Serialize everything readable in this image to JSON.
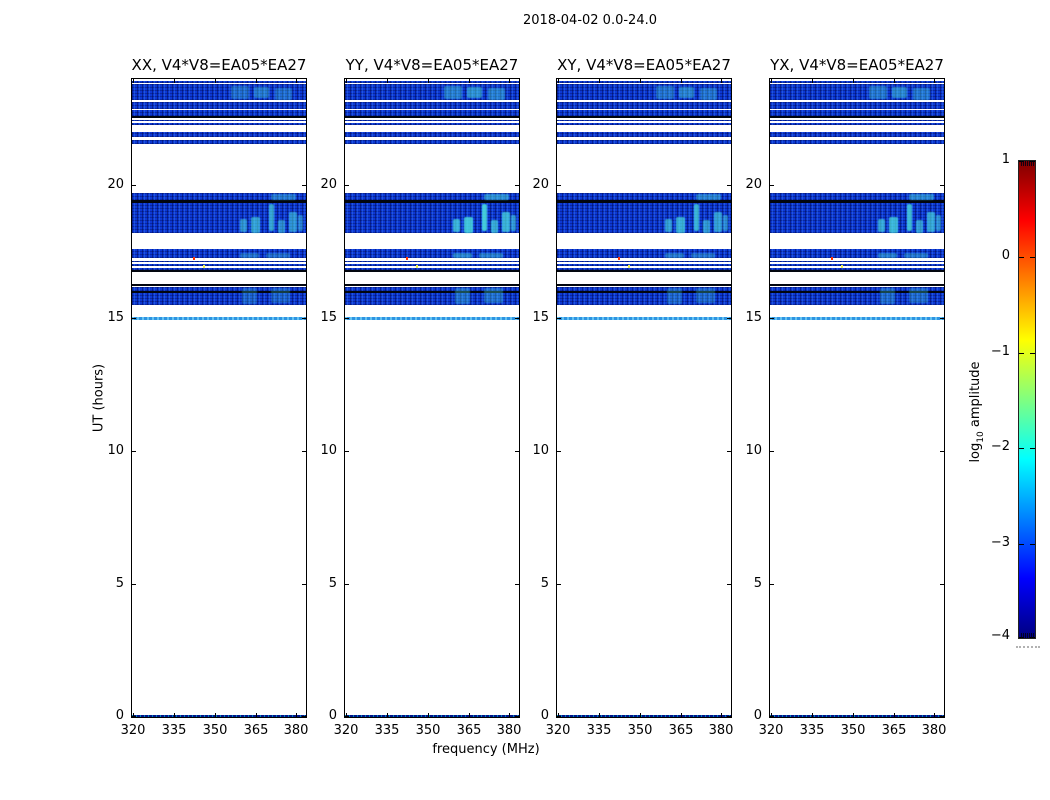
{
  "figure": {
    "title": "2018-04-02 0.0-24.0",
    "background": "#ffffff"
  },
  "chart_data": {
    "type": "heatmap",
    "subtype": "dynamic-spectrum waterfall, 4 polarization panels sharing identical axes",
    "title": "2018-04-02 0.0-24.0",
    "xlabel": "frequency (MHz)",
    "ylabel": "UT (hours)",
    "x_range_mhz": [
      319.5,
      383.5
    ],
    "y_range_hours": [
      0,
      24
    ],
    "grid": false,
    "panels": [
      {
        "id": "XX",
        "title": "XX, V4*V8=EA05*EA27",
        "streak_gain": 0.75
      },
      {
        "id": "YY",
        "title": "YY, V4*V8=EA05*EA27",
        "streak_gain": 1.0
      },
      {
        "id": "XY",
        "title": "XY, V4*V8=EA05*EA27",
        "streak_gain": 0.85
      },
      {
        "id": "YX",
        "title": "YX, V4*V8=EA05*EA27",
        "streak_gain": 0.9
      }
    ],
    "x_ticks": {
      "labels": [
        "320",
        "335",
        "350",
        "365",
        "380"
      ],
      "fracs": [
        0.008,
        0.242,
        0.477,
        0.711,
        0.945
      ]
    },
    "y_ticks": {
      "labels": [
        "0",
        "5",
        "10",
        "15",
        "20"
      ],
      "hours": [
        0,
        5,
        10,
        15,
        20
      ]
    },
    "bands": [
      {
        "t": 23.93,
        "b": 23.85,
        "s": "blue"
      },
      {
        "t": 23.8,
        "b": 23.21,
        "s": "blue"
      },
      {
        "t": 23.12,
        "b": 22.88,
        "s": "blue"
      },
      {
        "t": 22.83,
        "b": 22.6,
        "s": "blue"
      },
      {
        "t": 22.6,
        "b": 22.53,
        "s": "black"
      },
      {
        "t": 22.47,
        "b": 22.41,
        "s": "blue"
      },
      {
        "t": 22.34,
        "b": 22.28,
        "s": "blue"
      },
      {
        "t": 22.02,
        "b": 21.82,
        "s": "blue"
      },
      {
        "t": 21.71,
        "b": 21.56,
        "s": "blue"
      },
      {
        "t": 19.7,
        "b": 19.44,
        "s": "blue"
      },
      {
        "t": 19.44,
        "b": 19.32,
        "s": "black"
      },
      {
        "t": 19.32,
        "b": 18.19,
        "s": "blue"
      },
      {
        "t": 17.6,
        "b": 17.51,
        "s": "blue"
      },
      {
        "t": 17.48,
        "b": 17.25,
        "s": "blue"
      },
      {
        "t": 17.17,
        "b": 17.1,
        "s": "blue"
      },
      {
        "t": 17.04,
        "b": 16.95,
        "s": "blue"
      },
      {
        "t": 16.88,
        "b": 16.8,
        "s": "blue"
      },
      {
        "t": 16.8,
        "b": 16.73,
        "s": "black"
      },
      {
        "t": 16.29,
        "b": 16.2,
        "s": "black"
      },
      {
        "t": 16.17,
        "b": 16.01,
        "s": "blue"
      },
      {
        "t": 16.01,
        "b": 15.95,
        "s": "black"
      },
      {
        "t": 15.95,
        "b": 15.5,
        "s": "blue"
      },
      {
        "t": 15.06,
        "b": 14.93,
        "s": "lightblue"
      },
      {
        "t": 0.08,
        "b": 0.0,
        "s": "navy"
      }
    ],
    "streaks": [
      {
        "x": 0.57,
        "w": 0.1,
        "t": 23.75,
        "b": 23.25,
        "o": 0.4
      },
      {
        "x": 0.7,
        "w": 0.09,
        "t": 23.7,
        "b": 23.28,
        "o": 0.5
      },
      {
        "x": 0.82,
        "w": 0.1,
        "t": 23.65,
        "b": 23.22,
        "o": 0.4
      },
      {
        "x": 0.8,
        "w": 0.14,
        "t": 19.68,
        "b": 19.46,
        "o": 0.5
      },
      {
        "x": 0.62,
        "w": 0.04,
        "t": 18.75,
        "b": 18.24,
        "o": 0.7
      },
      {
        "x": 0.685,
        "w": 0.05,
        "t": 18.8,
        "b": 18.22,
        "o": 0.8
      },
      {
        "x": 0.79,
        "w": 0.028,
        "t": 19.28,
        "b": 18.3,
        "o": 0.85
      },
      {
        "x": 0.84,
        "w": 0.04,
        "t": 18.7,
        "b": 18.22,
        "o": 0.65
      },
      {
        "x": 0.9,
        "w": 0.05,
        "t": 19.0,
        "b": 18.26,
        "o": 0.7
      },
      {
        "x": 0.955,
        "w": 0.03,
        "t": 18.9,
        "b": 18.3,
        "o": 0.55
      },
      {
        "x": 0.62,
        "w": 0.11,
        "t": 17.46,
        "b": 17.27,
        "o": 0.45
      },
      {
        "x": 0.77,
        "w": 0.14,
        "t": 17.46,
        "b": 17.27,
        "o": 0.4
      },
      {
        "x": 0.63,
        "w": 0.09,
        "t": 16.15,
        "b": 15.55,
        "o": 0.32
      },
      {
        "x": 0.8,
        "w": 0.11,
        "t": 16.12,
        "b": 15.58,
        "o": 0.32
      }
    ],
    "dots": [
      {
        "x": 0.352,
        "h": 17.3,
        "c": "#ff3300"
      },
      {
        "x": 0.41,
        "h": 17.0,
        "c": "#f0f050"
      }
    ],
    "colors": {
      "band_blue": "#0c38d4",
      "band_black": "#02060f",
      "line_lightblue": "#2e93e2",
      "line_navy": "#001488",
      "streak_cyan": "#4ee6e0"
    }
  },
  "colorbar": {
    "label_pre": "log",
    "label_sub": "10",
    "label_post": " amplitude",
    "range": [
      -4,
      1
    ],
    "ticks": [
      "1",
      "0",
      "−1",
      "−2",
      "−3",
      "−4"
    ],
    "colormap": "jet",
    "stops": [
      "#00007f",
      "#0000ff",
      "#0080ff",
      "#00ffff",
      "#80ff80",
      "#ffff00",
      "#ff8000",
      "#ff0000",
      "#7f0000"
    ]
  }
}
